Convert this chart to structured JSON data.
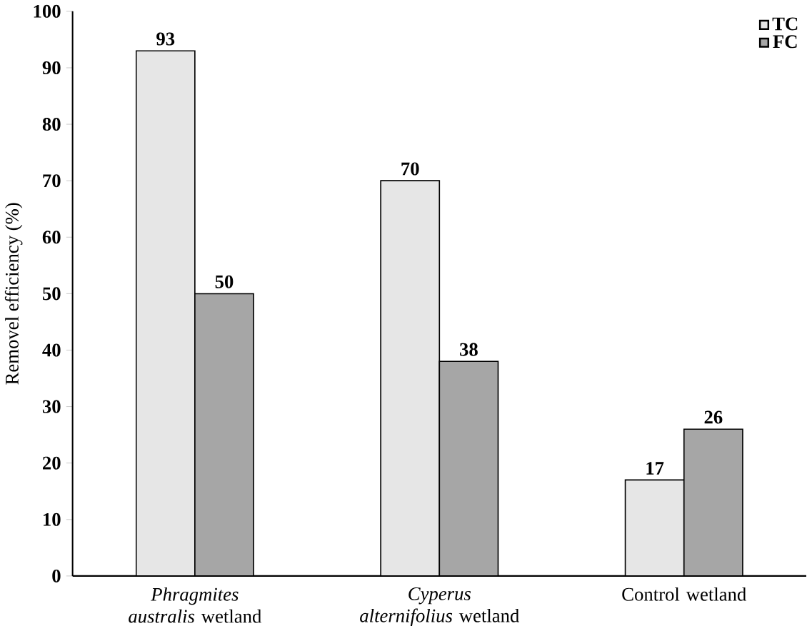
{
  "chart_data": {
    "type": "bar",
    "ylabel": "Removel efficiency (%)",
    "categories": [
      "*Phragmites australis* wetland",
      "*Cyperus alternifolius* wetland",
      "Control wetland"
    ],
    "series": [
      {
        "name": "TC",
        "color": "#e6e6e6",
        "values": [
          93,
          70,
          17
        ]
      },
      {
        "name": "FC",
        "color": "#a6a6a6",
        "values": [
          50,
          38,
          26
        ]
      }
    ],
    "ylim": [
      0,
      100
    ],
    "yticks": [
      0,
      10,
      20,
      30,
      40,
      50,
      60,
      70,
      80,
      90,
      100
    ],
    "grid": false,
    "legend": "top right",
    "data_labels": true
  }
}
